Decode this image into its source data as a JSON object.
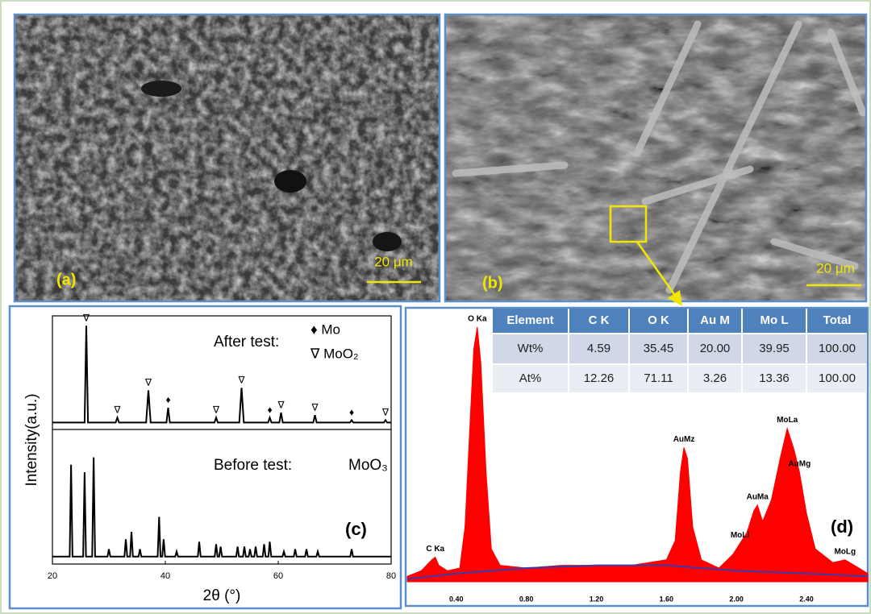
{
  "panels": [
    {
      "label": "(a)",
      "scale_bar": "20 μm"
    },
    {
      "label": "(b)",
      "scale_bar": "20 μm"
    }
  ],
  "table": {
    "header": [
      "Element",
      "C K",
      "O K",
      "Au M",
      "Mo L",
      "Total"
    ],
    "rows": [
      [
        "Wt%",
        "4.59",
        "35.45",
        "20.00",
        "39.95",
        "100.00"
      ],
      [
        "At%",
        "12.26",
        "71.11",
        "3.26",
        "13.36",
        "100.00"
      ]
    ]
  },
  "chart_data": [
    {
      "type": "line",
      "label": "(c)",
      "xlabel": "2θ (°)",
      "ylabel": "Intensity(a.u.)",
      "xlim": [
        20,
        80
      ],
      "xticks": [
        20,
        40,
        60,
        80
      ],
      "ylim": [
        0,
        100
      ],
      "annotations": [
        "♦ Mo",
        "∇ MoO₂",
        "MoO₃"
      ],
      "series": [
        {
          "name": "After test:",
          "color": "#000000",
          "x": [
            20,
            25.7,
            26,
            26.3,
            31.2,
            31.5,
            31.8,
            36.6,
            37,
            37.4,
            40.2,
            40.5,
            40.8,
            48.7,
            49,
            49.3,
            53.1,
            53.5,
            53.9,
            58.2,
            58.5,
            58.8,
            60.2,
            60.5,
            60.8,
            66.2,
            66.5,
            66.8,
            72.7,
            73,
            73.3,
            78.7,
            79,
            79.3,
            80
          ],
          "values": [
            57,
            57,
            96,
            57,
            57,
            59,
            57,
            57,
            70,
            57,
            57,
            63,
            57,
            57,
            59,
            57,
            57,
            71,
            57,
            57,
            59,
            57,
            57,
            61,
            57,
            57,
            60,
            57,
            57,
            58,
            57,
            57,
            58,
            57,
            57
          ]
        },
        {
          "name": "Before test:",
          "color": "#000000",
          "x": [
            20,
            23.05,
            23.3,
            23.55,
            25.45,
            25.7,
            25.95,
            27.05,
            27.3,
            27.55,
            29.75,
            30,
            30.25,
            32.75,
            33,
            33.25,
            33.75,
            34,
            34.25,
            35.25,
            35.5,
            35.75,
            38.65,
            38.9,
            39.15,
            39.45,
            39.7,
            39.95,
            41.75,
            42,
            42.25,
            45.75,
            46,
            46.25,
            48.75,
            49,
            49.25,
            49.55,
            49.8,
            50.05,
            52.55,
            52.8,
            53.05,
            53.75,
            54,
            54.25,
            54.75,
            55,
            55.25,
            55.75,
            56,
            56.25,
            57.25,
            57.5,
            57.75,
            58.25,
            58.5,
            58.75,
            60.75,
            61,
            61.25,
            62.75,
            63,
            63.25,
            64.75,
            65,
            65.25,
            66.75,
            67,
            67.25,
            72.75,
            73,
            73.25,
            80
          ],
          "values": [
            3,
            3,
            40,
            3,
            3,
            37,
            3,
            3,
            43,
            3,
            3,
            6,
            3,
            3,
            10,
            3,
            3,
            13,
            3,
            3,
            6,
            3,
            3,
            19,
            3,
            3,
            10,
            3,
            3,
            5,
            3,
            3,
            9,
            3,
            3,
            8,
            3,
            3,
            7,
            3,
            3,
            7,
            3,
            3,
            7,
            3,
            3,
            6,
            3,
            3,
            7,
            3,
            3,
            8,
            3,
            3,
            9,
            3,
            3,
            5,
            3,
            3,
            6,
            3,
            3,
            6,
            3,
            3,
            5,
            3,
            3,
            6,
            3,
            3
          ]
        }
      ],
      "peak_markers": [
        {
          "x": 26,
          "label": "∇"
        },
        {
          "x": 31.5,
          "label": "∇"
        },
        {
          "x": 37,
          "label": "∇"
        },
        {
          "x": 40.5,
          "label": "♦"
        },
        {
          "x": 49,
          "label": "∇"
        },
        {
          "x": 53.5,
          "label": "∇"
        },
        {
          "x": 58.5,
          "label": "♦"
        },
        {
          "x": 60.5,
          "label": "∇"
        },
        {
          "x": 66.5,
          "label": "∇"
        },
        {
          "x": 73,
          "label": "♦"
        },
        {
          "x": 79,
          "label": "∇"
        }
      ]
    },
    {
      "type": "area",
      "label": "(d)",
      "xlim": [
        0.12,
        2.75
      ],
      "ylim": [
        0,
        100
      ],
      "xticks": [
        {
          "value": 0.4,
          "label": "0.40"
        },
        {
          "value": 0.8,
          "label": "0.80"
        },
        {
          "value": 1.2,
          "label": "1.20"
        },
        {
          "value": 1.6,
          "label": "1.60"
        },
        {
          "value": 2.0,
          "label": "2.00"
        },
        {
          "value": 2.4,
          "label": "2.40"
        }
      ],
      "series": [
        {
          "color": "#ff0000",
          "x": [
            0.12,
            0.2,
            0.26,
            0.28,
            0.3,
            0.35,
            0.42,
            0.45,
            0.48,
            0.5,
            0.52,
            0.54,
            0.57,
            0.6,
            0.65,
            0.8,
            1.0,
            1.2,
            1.4,
            1.6,
            1.65,
            1.68,
            1.7,
            1.72,
            1.75,
            1.8,
            1.9,
            1.98,
            2.02,
            2.06,
            2.1,
            2.12,
            2.15,
            2.2,
            2.25,
            2.29,
            2.33,
            2.36,
            2.4,
            2.45,
            2.55,
            2.62,
            2.7,
            2.75
          ],
          "values": [
            2,
            4,
            8,
            9,
            6,
            4,
            5,
            20,
            60,
            85,
            93,
            80,
            40,
            12,
            6,
            5,
            6,
            6,
            6,
            8,
            15,
            40,
            49,
            45,
            20,
            8,
            5,
            10,
            14,
            18,
            26,
            28,
            22,
            30,
            45,
            56,
            48,
            40,
            25,
            12,
            7,
            8,
            5,
            3
          ]
        },
        {
          "color": "#3a3aa8",
          "x": [
            0.12,
            0.4,
            0.8,
            1.2,
            1.6,
            2.0,
            2.4,
            2.75
          ],
          "values": [
            1,
            3,
            5,
            6,
            6,
            4,
            3,
            2
          ]
        }
      ],
      "peak_labels": [
        {
          "x": 0.28,
          "label": "C Ka"
        },
        {
          "x": 0.52,
          "label": "O Ka"
        },
        {
          "x": 1.7,
          "label": "AuMz"
        },
        {
          "x": 2.02,
          "label": "MoLl"
        },
        {
          "x": 2.12,
          "label": "AuMa"
        },
        {
          "x": 2.29,
          "label": "MoLa"
        },
        {
          "x": 2.36,
          "label": "AuMg"
        },
        {
          "x": 2.62,
          "label": "MoLg"
        }
      ]
    }
  ]
}
